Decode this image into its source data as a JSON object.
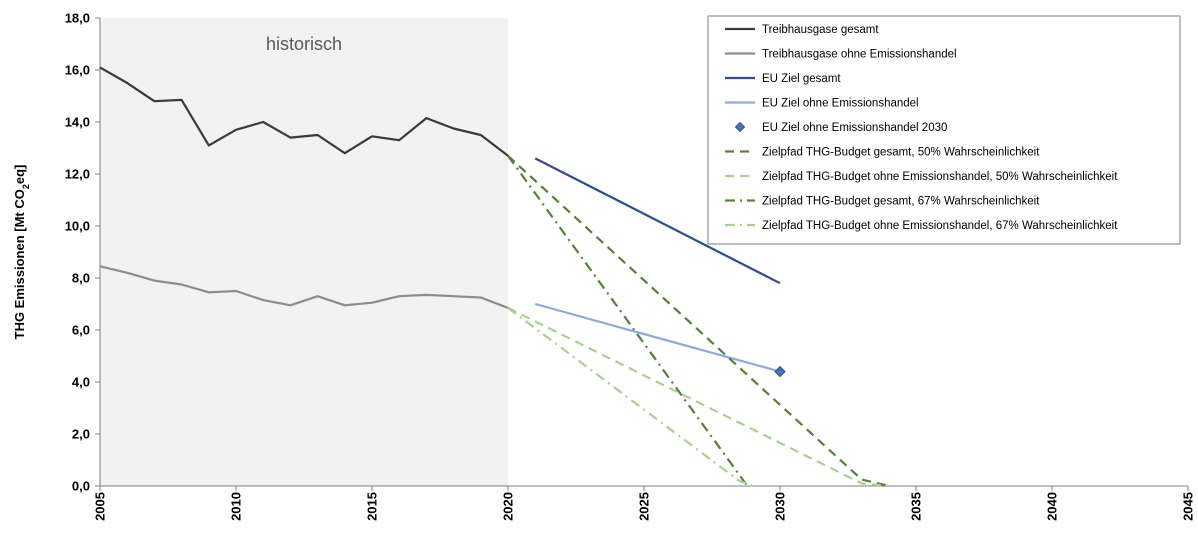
{
  "chart_data": {
    "type": "line",
    "ylabel": {
      "prefix": "THG Emissionen [Mt CO",
      "sub": "2",
      "suffix": "eq]"
    },
    "xlim": [
      2005,
      2045
    ],
    "ylim": [
      0,
      18
    ],
    "x_ticks": [
      "2005",
      "2010",
      "2015",
      "2020",
      "2025",
      "2030",
      "2035",
      "2040",
      "2045"
    ],
    "y_ticks": [
      "0,0",
      "2,0",
      "4,0",
      "6,0",
      "8,0",
      "10,0",
      "12,0",
      "14,0",
      "16,0",
      "18,0"
    ],
    "grid": false,
    "legend_position": "top-right",
    "annotations": [
      {
        "text": "historisch",
        "x_range": [
          2005,
          2020
        ]
      }
    ],
    "series": [
      {
        "name": "Treibhausgase gesamt",
        "color": "#3a3a3a",
        "style": "solid",
        "x": [
          2005,
          2006,
          2007,
          2008,
          2009,
          2010,
          2011,
          2012,
          2013,
          2014,
          2015,
          2016,
          2017,
          2018,
          2019,
          2020
        ],
        "y": [
          16.1,
          15.5,
          14.8,
          14.85,
          13.1,
          13.7,
          14.0,
          13.4,
          13.5,
          12.8,
          13.45,
          13.3,
          14.15,
          13.75,
          13.5,
          12.7
        ]
      },
      {
        "name": "Treibhausgase ohne Emissionshandel",
        "color": "#8c8c8c",
        "style": "solid",
        "x": [
          2005,
          2006,
          2007,
          2008,
          2009,
          2010,
          2011,
          2012,
          2013,
          2014,
          2015,
          2016,
          2017,
          2018,
          2019,
          2020
        ],
        "y": [
          8.45,
          8.2,
          7.9,
          7.75,
          7.45,
          7.5,
          7.15,
          6.95,
          7.3,
          6.95,
          7.05,
          7.3,
          7.35,
          7.3,
          7.25,
          6.85
        ]
      },
      {
        "name": "EU Ziel gesamt",
        "color": "#2e4d8f",
        "style": "solid",
        "x": [
          2021,
          2030
        ],
        "y": [
          12.6,
          7.8
        ]
      },
      {
        "name": "EU Ziel ohne Emissionshandel",
        "color": "#8eaadb",
        "style": "solid",
        "x": [
          2021,
          2030
        ],
        "y": [
          7.0,
          4.4
        ]
      },
      {
        "name": "EU Ziel ohne Emissionshandel 2030",
        "color": "#4472c4",
        "style": "marker",
        "x": [
          2030
        ],
        "y": [
          4.4
        ]
      },
      {
        "name": "Zielpfad THG-Budget gesamt, 50% Wahrscheinlichkeit",
        "color": "#548235",
        "style": "dash",
        "x": [
          2020,
          2033,
          2034
        ],
        "y": [
          12.7,
          0.25,
          0.0
        ]
      },
      {
        "name": "Zielpfad THG-Budget ohne Emissionshandel, 50% Wahrscheinlichkeit",
        "color": "#a9d18e",
        "style": "dash",
        "x": [
          2020,
          2033,
          2034
        ],
        "y": [
          6.85,
          0.1,
          0.0
        ]
      },
      {
        "name": "Zielpfad THG-Budget gesamt, 67% Wahrscheinlichkeit",
        "color": "#548235",
        "style": "dashdot",
        "x": [
          2020,
          2028.8
        ],
        "y": [
          12.7,
          0.0
        ]
      },
      {
        "name": "Zielpfad THG-Budget ohne Emissionshandel, 67% Wahrscheinlichkeit",
        "color": "#a9d18e",
        "style": "dashdot",
        "x": [
          2020,
          2028.5,
          2029
        ],
        "y": [
          6.85,
          0.2,
          0.0
        ]
      }
    ]
  }
}
